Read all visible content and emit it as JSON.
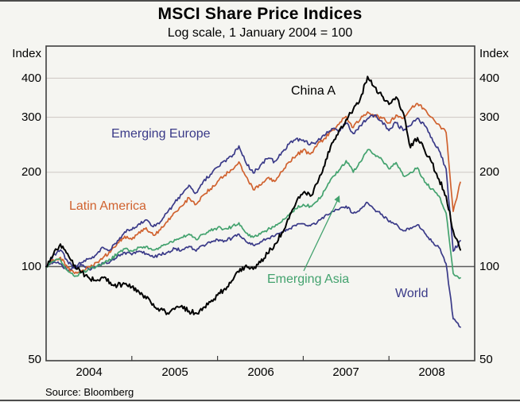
{
  "figure": {
    "title": "MSCI Share Price Indices",
    "subtitle": "Log scale, 1 January 2004 = 100",
    "source": "Source: Bloomberg",
    "axis_unit_left": "Index",
    "axis_unit_right": "Index"
  },
  "chart_data": {
    "type": "line",
    "title": "MSCI Share Price Indices",
    "subtitle": "Log scale, 1 January 2004 = 100",
    "x_unit": "monthly",
    "x_start": "2004-01",
    "x_end": "2008-11",
    "x_tick_labels": [
      "2004",
      "2005",
      "2006",
      "2007",
      "2008"
    ],
    "y_scale": "log",
    "y_ticks": [
      50,
      100,
      200,
      300,
      400
    ],
    "y_range": [
      50,
      500
    ],
    "reference_line": 100,
    "grid": true,
    "colors": {
      "blue": "#3a3a88",
      "orange": "#d0622f",
      "green": "#43a26e",
      "black": "#000000",
      "grid_light": "#ccc7c3",
      "grid_dark": "#5c5c5c",
      "frame": "#3f3f3f"
    },
    "series": [
      {
        "name": "China A",
        "color": "#000000",
        "values": [
          100,
          109,
          118,
          110,
          101,
          96,
          92,
          90,
          92,
          89,
          87,
          88,
          86,
          83,
          79,
          76,
          73,
          71,
          73,
          75,
          72,
          71,
          74,
          77,
          81,
          85,
          90,
          96,
          101,
          98,
          103,
          110,
          118,
          128,
          142,
          160,
          172,
          168,
          185,
          210,
          248,
          272,
          295,
          318,
          345,
          405,
          375,
          352,
          330,
          348,
          310,
          240,
          258,
          235,
          215,
          190,
          168,
          130,
          113
        ]
      },
      {
        "name": "Emerging Europe",
        "color": "#3a3a88",
        "values": [
          100,
          109,
          113,
          104,
          99,
          103,
          106,
          109,
          115,
          113,
          121,
          129,
          131,
          137,
          141,
          134,
          139,
          149,
          160,
          170,
          182,
          172,
          187,
          197,
          208,
          218,
          224,
          243,
          214,
          199,
          211,
          221,
          217,
          232,
          246,
          256,
          254,
          246,
          252,
          262,
          276,
          270,
          287,
          266,
          282,
          297,
          305,
          292,
          272,
          288,
          272,
          282,
          298,
          282,
          258,
          235,
          205,
          112,
          121
        ]
      },
      {
        "name": "Latin America",
        "color": "#d0622f",
        "values": [
          100,
          105,
          107,
          99,
          95,
          97,
          100,
          103,
          107,
          111,
          119,
          125,
          122,
          129,
          133,
          126,
          131,
          139,
          149,
          156,
          166,
          158,
          169,
          177,
          187,
          196,
          204,
          216,
          194,
          176,
          182,
          192,
          187,
          201,
          216,
          226,
          236,
          229,
          246,
          257,
          272,
          285,
          302,
          278,
          296,
          312,
          305,
          298,
          288,
          305,
          298,
          318,
          332,
          318,
          300,
          285,
          268,
          150,
          186
        ]
      },
      {
        "name": "Emerging Asia",
        "color": "#43a26e",
        "values": [
          100,
          104,
          105,
          97,
          93,
          96,
          98,
          100,
          103,
          105,
          110,
          114,
          112,
          115,
          116,
          113,
          115,
          118,
          122,
          124,
          127,
          122,
          127,
          130,
          133,
          132,
          134,
          138,
          128,
          124,
          127,
          131,
          134,
          139,
          146,
          153,
          158,
          156,
          162,
          175,
          192,
          203,
          218,
          200,
          216,
          236,
          228,
          220,
          205,
          215,
          195,
          200,
          207,
          186,
          177,
          168,
          148,
          95,
          92
        ]
      },
      {
        "name": "World",
        "color": "#3a3a88",
        "values": [
          100,
          103,
          102,
          97,
          99,
          101,
          98,
          100,
          102,
          104,
          108,
          111,
          109,
          112,
          110,
          107,
          109,
          111,
          114,
          113,
          116,
          112,
          117,
          119,
          122,
          121,
          123,
          127,
          120,
          117,
          120,
          123,
          125,
          129,
          132,
          135,
          137,
          135,
          139,
          145,
          150,
          152,
          156,
          148,
          153,
          160,
          152,
          147,
          139,
          137,
          130,
          133,
          136,
          128,
          120,
          115,
          102,
          68,
          64
        ]
      }
    ]
  }
}
